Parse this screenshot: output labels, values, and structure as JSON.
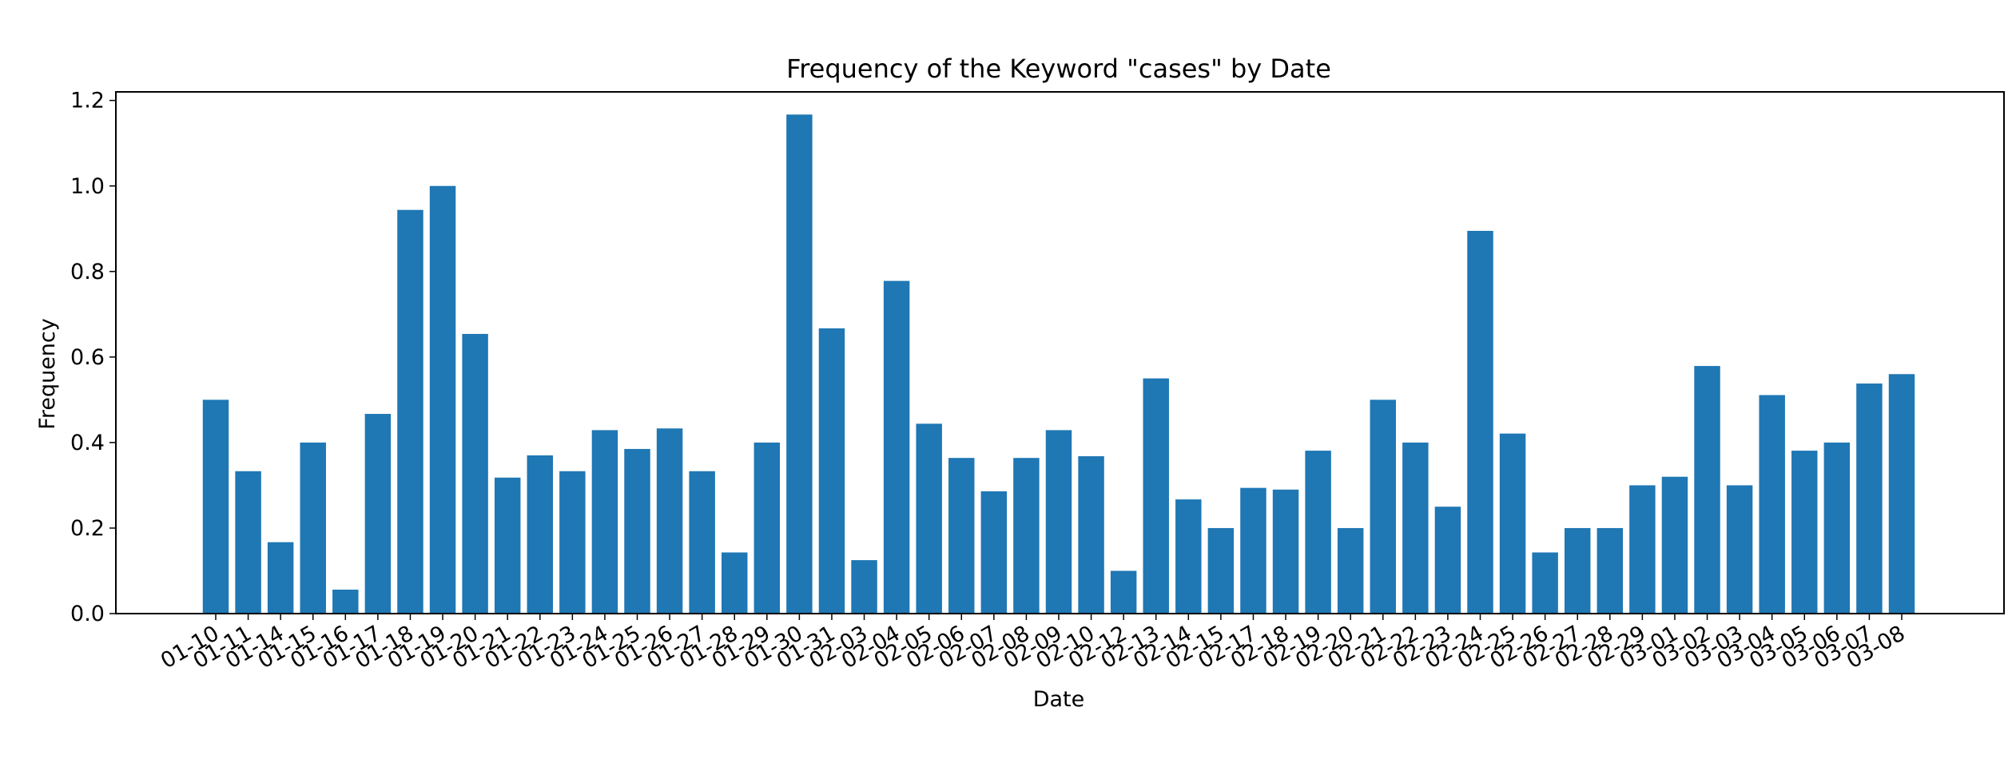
{
  "chart_data": {
    "type": "bar",
    "title": "Frequency of the Keyword \"cases\" by Date",
    "xlabel": "Date",
    "ylabel": "Frequency",
    "ylim": [
      0,
      1.22
    ],
    "yticks": [
      0.0,
      0.2,
      0.4,
      0.6,
      0.8,
      1.0,
      1.2
    ],
    "ytick_labels": [
      "0.0",
      "0.2",
      "0.4",
      "0.6",
      "0.8",
      "1.0",
      "1.2"
    ],
    "grid": false,
    "bar_color": "#1f77b4",
    "categories": [
      "01-10",
      "01-11",
      "01-14",
      "01-15",
      "01-16",
      "01-17",
      "01-18",
      "01-19",
      "01-20",
      "01-21",
      "01-22",
      "01-23",
      "01-24",
      "01-25",
      "01-26",
      "01-27",
      "01-28",
      "01-29",
      "01-30",
      "01-31",
      "02-03",
      "02-04",
      "02-05",
      "02-06",
      "02-07",
      "02-08",
      "02-09",
      "02-10",
      "02-12",
      "02-13",
      "02-14",
      "02-15",
      "02-17",
      "02-18",
      "02-19",
      "02-20",
      "02-21",
      "02-22",
      "02-23",
      "02-24",
      "02-25",
      "02-26",
      "02-27",
      "02-28",
      "02-29",
      "03-01",
      "03-02",
      "03-03",
      "03-04",
      "03-05",
      "03-06",
      "03-07",
      "03-08"
    ],
    "values": [
      0.5,
      0.333,
      0.167,
      0.4,
      0.056,
      0.467,
      0.944,
      1.0,
      0.654,
      0.318,
      0.37,
      0.333,
      0.429,
      0.385,
      0.433,
      0.333,
      0.143,
      0.4,
      1.167,
      0.667,
      0.125,
      0.778,
      0.444,
      0.364,
      0.286,
      0.364,
      0.429,
      0.368,
      0.1,
      0.55,
      0.267,
      0.2,
      0.294,
      0.29,
      0.381,
      0.2,
      0.5,
      0.4,
      0.25,
      0.895,
      0.421,
      0.143,
      0.2,
      0.2,
      0.3,
      0.32,
      0.579,
      0.3,
      0.511,
      0.381,
      0.4,
      0.538,
      0.56
    ]
  }
}
